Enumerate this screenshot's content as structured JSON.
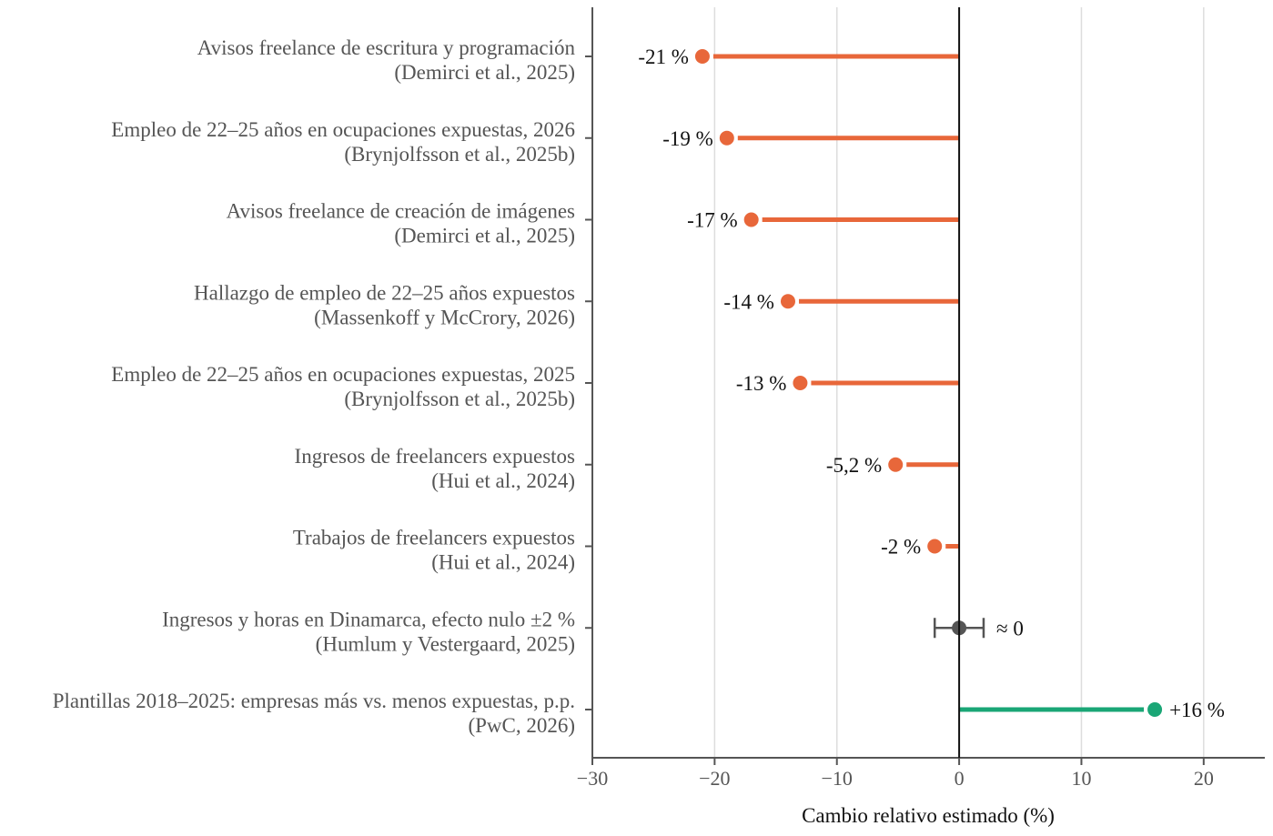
{
  "chart_data": {
    "type": "lollipop",
    "xlabel": "Cambio relativo estimado (%)",
    "xlim": [
      -30,
      25
    ],
    "xticks": [
      -30,
      -20,
      -10,
      0,
      10,
      20
    ],
    "xtick_labels": [
      "−30",
      "−20",
      "−10",
      "0",
      "10",
      "20"
    ],
    "grid": "vertical",
    "colors": {
      "negative": "#e8673a",
      "positive": "#1aa676",
      "neutral": "#555555"
    },
    "rows": [
      {
        "line1": "Avisos freelance de escritura y programación",
        "line2": "(Demirci et al., 2025)",
        "value": -21,
        "label": "-21 %",
        "kind": "negative"
      },
      {
        "line1": "Empleo de 22–25 años en ocupaciones expuestas, 2026",
        "line2": "(Brynjolfsson et al., 2025b)",
        "value": -19,
        "label": "-19 %",
        "kind": "negative"
      },
      {
        "line1": "Avisos freelance de creación de imágenes",
        "line2": "(Demirci et al., 2025)",
        "value": -17,
        "label": "-17 %",
        "kind": "negative"
      },
      {
        "line1": "Hallazgo de empleo de 22–25 años expuestos",
        "line2": "(Massenkoff y McCrory, 2026)",
        "value": -14,
        "label": "-14 %",
        "kind": "negative"
      },
      {
        "line1": "Empleo de 22–25 años en ocupaciones expuestas, 2025",
        "line2": "(Brynjolfsson et al., 2025b)",
        "value": -13,
        "label": "-13 %",
        "kind": "negative"
      },
      {
        "line1": "Ingresos de freelancers expuestos",
        "line2": "(Hui et al., 2024)",
        "value": -5.2,
        "label": "-5,2 %",
        "kind": "negative"
      },
      {
        "line1": "Trabajos de freelancers expuestos",
        "line2": "(Hui et al., 2024)",
        "value": -2,
        "label": "-2 %",
        "kind": "negative"
      },
      {
        "line1": "Ingresos y horas en Dinamarca, efecto nulo ±2 %",
        "line2": "(Humlum y Vestergaard, 2025)",
        "value": 0,
        "err": 2,
        "label": "≈ 0",
        "kind": "neutral"
      },
      {
        "line1": "Plantillas 2018–2025: empresas más vs. menos expuestas, p.p.",
        "line2": "(PwC, 2026)",
        "value": 16,
        "label": "+16 %",
        "kind": "positive"
      }
    ]
  }
}
